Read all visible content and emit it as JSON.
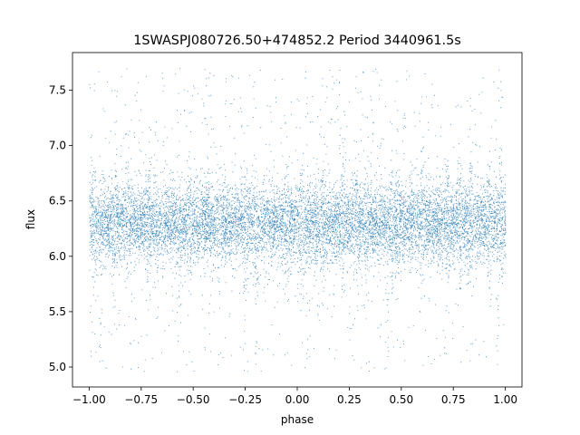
{
  "chart_data": {
    "type": "scatter",
    "title": "1SWASPJ080726.50+474852.2 Period 3440961.5s",
    "xlabel": "phase",
    "ylabel": "flux",
    "xlim": [
      -1.08,
      1.08
    ],
    "ylim": [
      4.82,
      7.84
    ],
    "x_ticks": [
      -1.0,
      -0.75,
      -0.5,
      -0.25,
      0.0,
      0.25,
      0.5,
      0.75,
      1.0
    ],
    "x_tick_labels": [
      "−1.00",
      "−0.75",
      "−0.50",
      "−0.25",
      "0.00",
      "0.25",
      "0.50",
      "0.75",
      "1.00"
    ],
    "y_ticks": [
      5.0,
      5.5,
      6.0,
      6.5,
      7.0,
      7.5
    ],
    "y_tick_labels": [
      "5.0",
      "5.5",
      "6.0",
      "6.5",
      "7.0",
      "7.5"
    ],
    "grid": false,
    "legend": "none",
    "marker_color": "#1f77b4",
    "series": [
      {
        "x_range": [
          -1.0,
          1.0
        ],
        "y_median": 6.3,
        "y_core_range": [
          6.0,
          6.6
        ],
        "y_full_range": [
          4.95,
          7.7
        ],
        "bright_clusters": [
          -0.98,
          -0.88,
          -0.82,
          -0.72,
          -0.68,
          -0.52,
          -0.38,
          -0.25,
          -0.2,
          -0.05,
          0.02,
          0.12,
          0.22,
          0.28,
          0.33,
          0.45,
          0.48,
          0.6,
          0.72,
          0.78,
          0.83,
          0.92,
          0.98
        ],
        "dim_dips": [
          -0.95,
          -0.57,
          -0.25,
          -0.2,
          0.05,
          0.43,
          0.78,
          0.96
        ]
      }
    ]
  }
}
